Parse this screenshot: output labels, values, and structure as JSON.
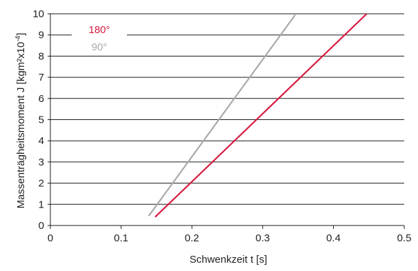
{
  "chart_data": {
    "type": "line",
    "title": "",
    "xlabel": "Schwenkzeit t [s]",
    "ylabel": "Massenträgheitsmoment J [kgm²x10",
    "ylabel_exponent": "-4",
    "ylabel_close": "]",
    "xlim": [
      0,
      0.5
    ],
    "ylim": [
      0,
      10
    ],
    "x_ticks": [
      0,
      0.1,
      0.2,
      0.3,
      0.4,
      0.5
    ],
    "x_tick_labels": [
      "0",
      "0.1",
      "0.2",
      "0.3",
      "0.4",
      "0.5"
    ],
    "y_ticks": [
      0,
      1,
      2,
      3,
      4,
      5,
      6,
      7,
      8,
      9,
      10
    ],
    "y_tick_labels": [
      "0",
      "1",
      "2",
      "3",
      "4",
      "5",
      "6",
      "7",
      "8",
      "9",
      "10"
    ],
    "grid": "horizontal",
    "legend_position": "top-left",
    "series": [
      {
        "name": "180°",
        "color": "#d7193f",
        "x": [
          0.148,
          0.447
        ],
        "y": [
          0.4,
          10.0
        ]
      },
      {
        "name": "90°",
        "color": "#a9a9a9",
        "x": [
          0.139,
          0.346
        ],
        "y": [
          0.45,
          9.95
        ]
      }
    ]
  }
}
